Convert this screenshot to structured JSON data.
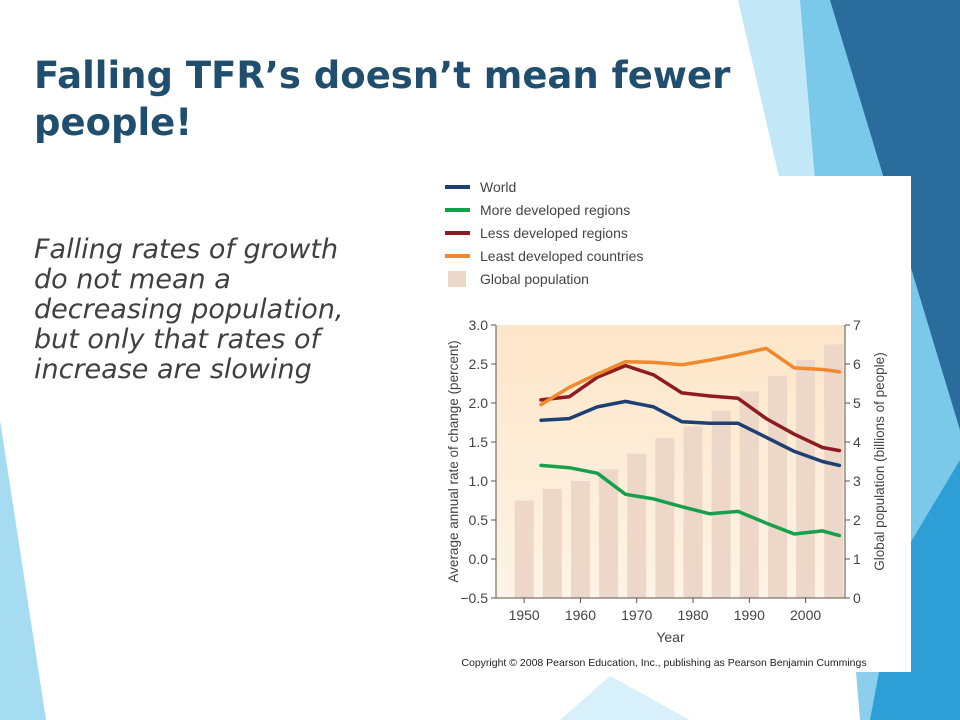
{
  "slide": {
    "title_line1": "Falling TFR’s doesn’t mean fewer",
    "title_line2": "people!",
    "body_lines": [
      "Falling rates of growth",
      "do not mean a",
      "decreasing population,",
      "but only that rates of",
      "increase are slowing"
    ]
  },
  "colors": {
    "title": "#1f4e6e",
    "body": "#404040",
    "plot_bg_top": "#fde6c8",
    "plot_bg_bottom": "#fdf3e6",
    "bars": "#ecd7c8",
    "decor_light": "#8fd3ef",
    "decor_mid": "#2e9fd6",
    "decor_dark": "#2a6c9c"
  },
  "chart_data": {
    "type": "line",
    "legend_position": "top-left",
    "xlabel": "Year",
    "ylabel": "Average annual rate of change (percent)",
    "y2label": "Global population (billions of people)",
    "xlim": [
      1945,
      2007
    ],
    "ylim": [
      -0.5,
      3.0
    ],
    "y2lim": [
      0,
      7
    ],
    "xticks": [
      1950,
      1960,
      1970,
      1980,
      1990,
      2000
    ],
    "yticks": [
      "3.0",
      "2.5",
      "2.0",
      "1.5",
      "1.0",
      "0.5",
      "0.0",
      "−0.5"
    ],
    "y2ticks": [
      "7",
      "6",
      "5",
      "4",
      "3",
      "2",
      "1",
      "0"
    ],
    "copyright": "Copyright © 2008 Pearson Education, Inc., publishing as Pearson Benjamin Cummings",
    "bars": {
      "name": "Global population",
      "color": "#ecd7c8",
      "x": [
        1950,
        1955,
        1960,
        1965,
        1970,
        1975,
        1980,
        1985,
        1990,
        1995,
        2000,
        2005
      ],
      "values": [
        2.5,
        2.8,
        3.0,
        3.3,
        3.7,
        4.1,
        4.4,
        4.8,
        5.3,
        5.7,
        6.1,
        6.5
      ]
    },
    "series": [
      {
        "name": "World",
        "color": "#1d3f73",
        "x": [
          1953,
          1958,
          1963,
          1968,
          1973,
          1978,
          1983,
          1988,
          1993,
          1998,
          2003,
          2006
        ],
        "values": [
          1.78,
          1.8,
          1.95,
          2.02,
          1.95,
          1.76,
          1.74,
          1.74,
          1.56,
          1.38,
          1.25,
          1.2
        ]
      },
      {
        "name": "More developed regions",
        "color": "#17a04b",
        "x": [
          1953,
          1958,
          1963,
          1968,
          1973,
          1978,
          1983,
          1988,
          1993,
          1998,
          2003,
          2006
        ],
        "values": [
          1.2,
          1.17,
          1.1,
          0.83,
          0.77,
          0.67,
          0.58,
          0.61,
          0.46,
          0.32,
          0.36,
          0.3
        ]
      },
      {
        "name": "Less developed regions",
        "color": "#8e1b22",
        "x": [
          1953,
          1958,
          1963,
          1968,
          1973,
          1978,
          1983,
          1988,
          1993,
          1998,
          2003,
          2006
        ],
        "values": [
          2.04,
          2.08,
          2.33,
          2.48,
          2.36,
          2.13,
          2.09,
          2.06,
          1.8,
          1.6,
          1.43,
          1.39
        ]
      },
      {
        "name": "Least developed countries",
        "color": "#f0892d",
        "x": [
          1953,
          1958,
          1963,
          1968,
          1973,
          1978,
          1983,
          1988,
          1993,
          1998,
          2003,
          2006
        ],
        "values": [
          1.98,
          2.2,
          2.37,
          2.53,
          2.52,
          2.49,
          2.55,
          2.62,
          2.7,
          2.45,
          2.43,
          2.4
        ]
      }
    ]
  }
}
